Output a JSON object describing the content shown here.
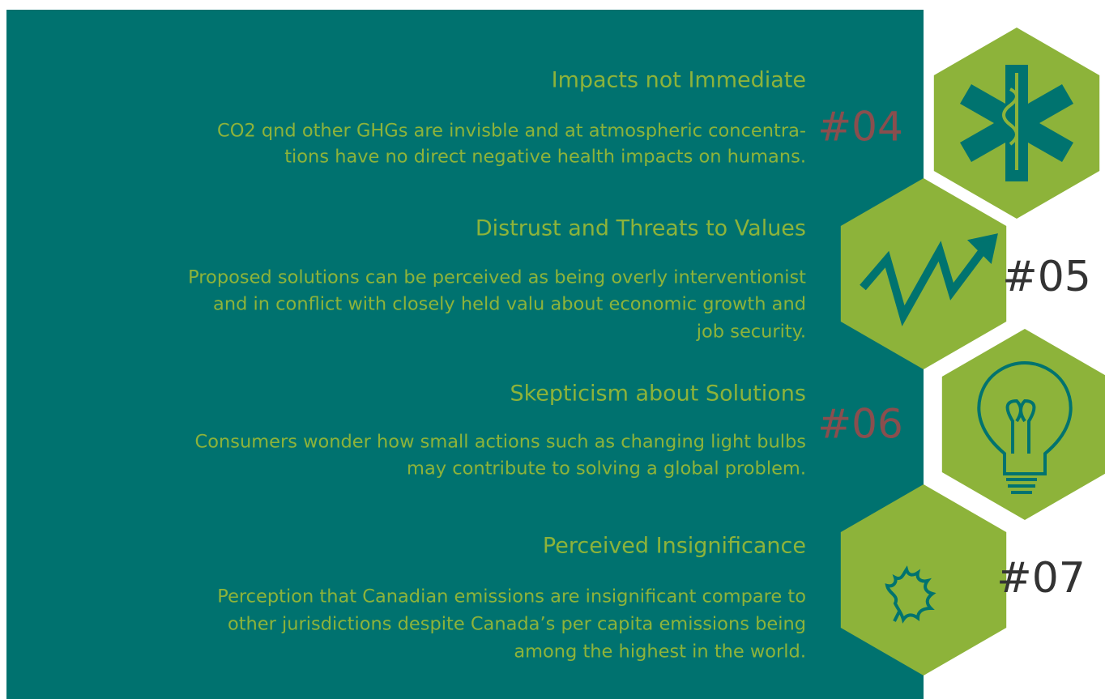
{
  "items": [
    {
      "number": "#04",
      "title": "Impacts not Immediate",
      "body": [
        "CO2 qnd other GHGs are invisble and at atmospheric concentra-",
        "tions have no direct negative health impacts on humans."
      ]
    },
    {
      "number": "#05",
      "title": "Distrust and Threats to Values",
      "body": [
        "Proposed solutions can be perceived as being overly interventionist",
        "and in conflict with closely held valu about economic growth and",
        "job security."
      ]
    },
    {
      "number": "#06",
      "title": "Skepticism about Solutions",
      "body": [
        "Consumers wonder how small actions such as changing light bulbs",
        "may contribute to solving a global problem."
      ]
    },
    {
      "number": "#07",
      "title": "Perceived Insignificance",
      "body": [
        "Perception that Canadian emissions are insignificant compare to",
        "other jurisdictions despite Canada’s per capita emissions being",
        "among the highest in the world."
      ]
    }
  ]
}
